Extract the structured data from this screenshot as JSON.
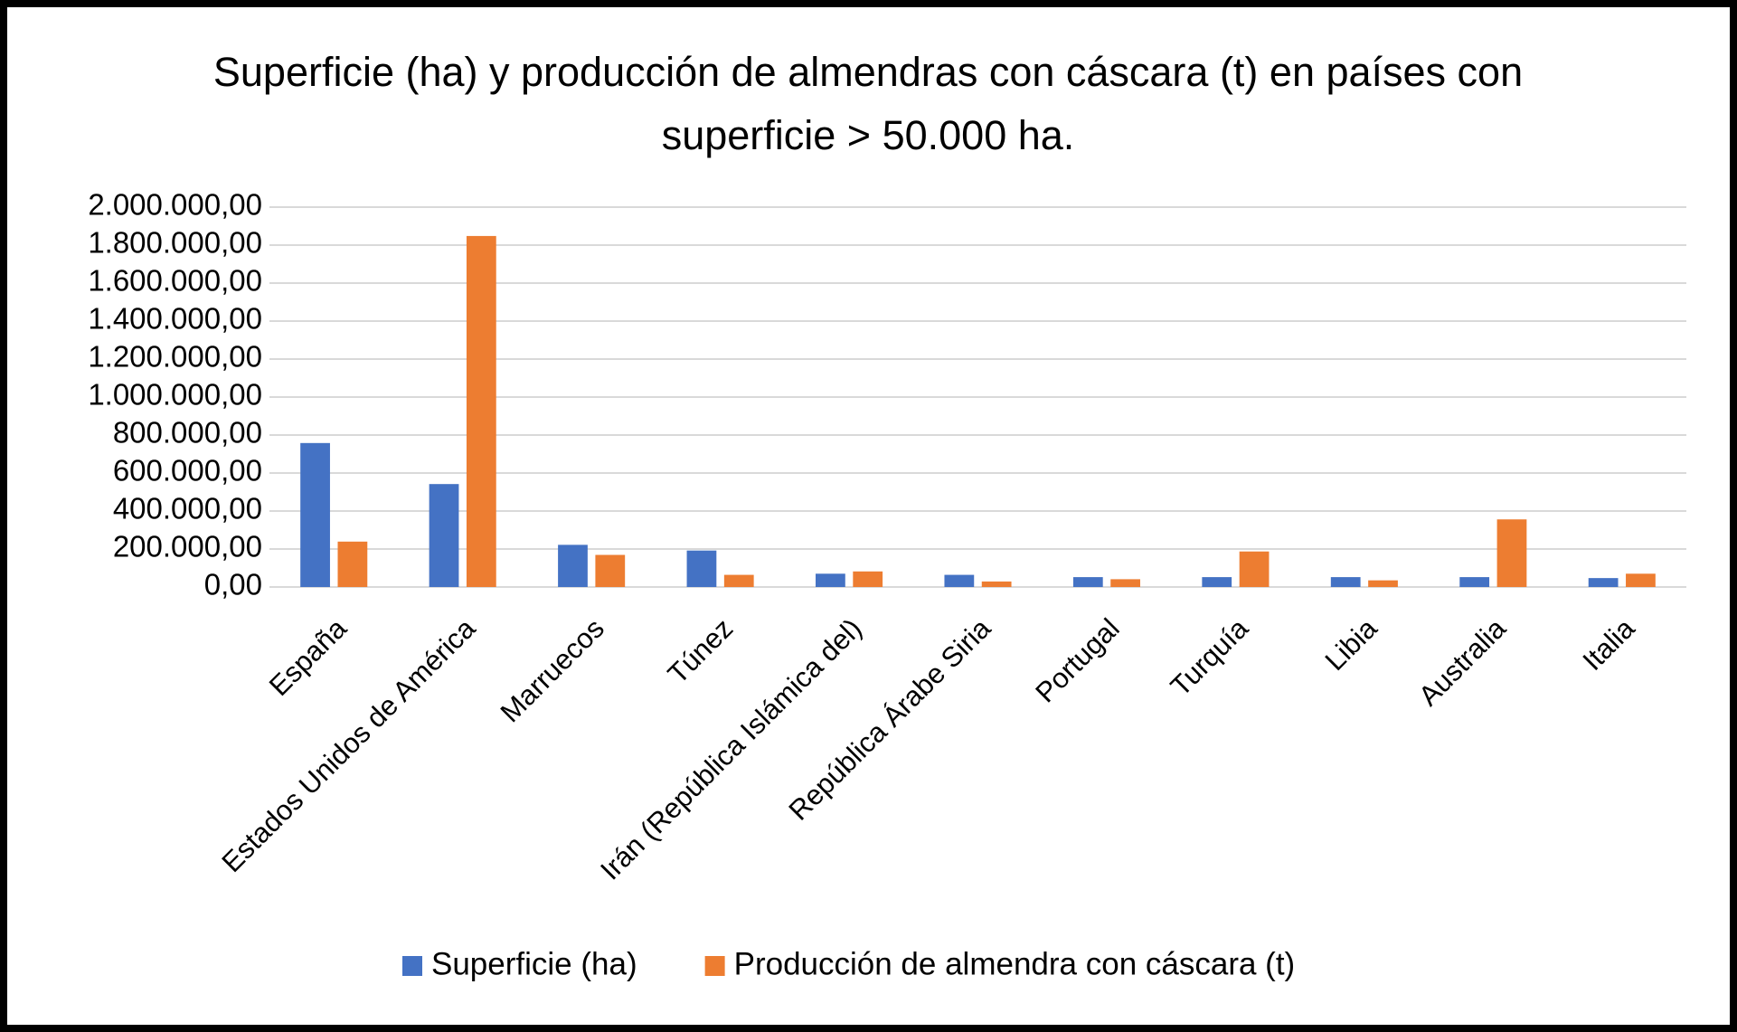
{
  "chart_data": {
    "type": "bar",
    "title": "Superficie (ha) y producción de almendras con cáscara (t) en países con superficie > 50.000 ha.",
    "categories": [
      "España",
      "Estados Unidos de América",
      "Marruecos",
      "Túnez",
      "Irán (República Islámica del)",
      "República Árabe Siria",
      "Portugal",
      "Turquía",
      "Libia",
      "Australia",
      "Italia"
    ],
    "series": [
      {
        "name": "Superficie (ha)",
        "color": "#4472c4",
        "values": [
          758000,
          542000,
          222000,
          192000,
          70000,
          64000,
          52000,
          52000,
          52000,
          52000,
          47000
        ]
      },
      {
        "name": "Producción de almendra con cáscara (t)",
        "color": "#ed7d31",
        "values": [
          239000,
          1848000,
          169000,
          64000,
          82000,
          29000,
          41000,
          187000,
          35000,
          356000,
          70000
        ]
      }
    ],
    "ylim": [
      0,
      2000000
    ],
    "yticks": [
      {
        "value": 0,
        "label": "0,00"
      },
      {
        "value": 200000,
        "label": "200.000,00"
      },
      {
        "value": 400000,
        "label": "400.000,00"
      },
      {
        "value": 600000,
        "label": "600.000,00"
      },
      {
        "value": 800000,
        "label": "800.000,00"
      },
      {
        "value": 1000000,
        "label": "1.000.000,00"
      },
      {
        "value": 1200000,
        "label": "1.200.000,00"
      },
      {
        "value": 1400000,
        "label": "1.400.000,00"
      },
      {
        "value": 1600000,
        "label": "1.600.000,00"
      },
      {
        "value": 1800000,
        "label": "1.800.000,00"
      },
      {
        "value": 2000000,
        "label": "2.000.000,00"
      }
    ],
    "grid": true,
    "legend": "bottom"
  }
}
